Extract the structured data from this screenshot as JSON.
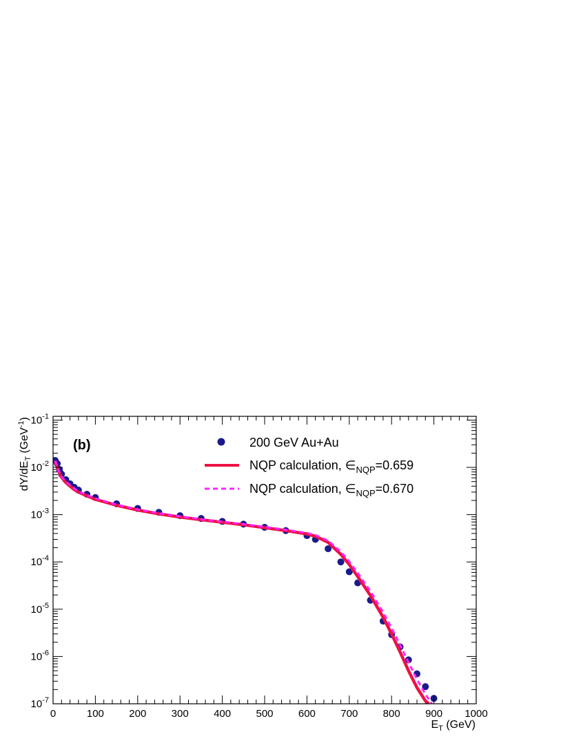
{
  "chart_data": {
    "type": "scatter",
    "panel_label": "(b)",
    "xlabel": {
      "main": "E",
      "sub": "T",
      "rest": " (GeV)"
    },
    "ylabel": {
      "pre": "dY/dE",
      "sub": "T",
      "mid": " (GeV",
      "sup": "-1",
      "post": ")"
    },
    "xlim": [
      0,
      1000
    ],
    "ylim": [
      1e-07,
      0.12
    ],
    "yscale": "log",
    "grid": false,
    "legend_position": "top-right",
    "x_ticks": [
      "0",
      "100",
      "200",
      "300",
      "400",
      "500",
      "600",
      "700",
      "800",
      "900",
      "1000"
    ],
    "y_ticks": [
      {
        "base": "10",
        "exp": "-7"
      },
      {
        "base": "10",
        "exp": "-6"
      },
      {
        "base": "10",
        "exp": "-5"
      },
      {
        "base": "10",
        "exp": "-4"
      },
      {
        "base": "10",
        "exp": "-3"
      },
      {
        "base": "10",
        "exp": "-2"
      },
      {
        "base": "10",
        "exp": "-1"
      }
    ],
    "series": [
      {
        "name": "200 GeV Au+Au",
        "style": "markers",
        "color": "#1a1a8c",
        "x": [
          5,
          10,
          15,
          20,
          30,
          40,
          50,
          60,
          80,
          100,
          150,
          200,
          250,
          300,
          350,
          400,
          450,
          500,
          550,
          600,
          620,
          650,
          680,
          700,
          720,
          750,
          780,
          800,
          820,
          840,
          860,
          880,
          900
        ],
        "y": [
          0.014,
          0.012,
          0.009,
          0.0072,
          0.0055,
          0.0045,
          0.0038,
          0.0033,
          0.0027,
          0.0023,
          0.0017,
          0.00135,
          0.00112,
          0.00095,
          0.00083,
          0.00072,
          0.00063,
          0.00054,
          0.00046,
          0.00036,
          0.0003,
          0.00019,
          0.0001,
          6.2e-05,
          3.6e-05,
          1.55e-05,
          5.6e-06,
          2.9e-06,
          1.6e-06,
          8.5e-07,
          4.3e-07,
          2.3e-07,
          1.3e-07
        ]
      },
      {
        "name": "NQP calculation, ",
        "eps_main": "∈",
        "eps_sub": "NQP",
        "eps_value": "=0.659",
        "style": "solid",
        "color": "#ee1144",
        "x": [
          5,
          10,
          15,
          20,
          30,
          40,
          50,
          60,
          80,
          100,
          150,
          200,
          250,
          300,
          350,
          400,
          450,
          500,
          550,
          600,
          620,
          650,
          680,
          700,
          720,
          750,
          780,
          800,
          820,
          840,
          860,
          880,
          888
        ],
        "y": [
          0.0135,
          0.0098,
          0.0076,
          0.0062,
          0.0048,
          0.004,
          0.0034,
          0.003,
          0.0025,
          0.0021,
          0.00158,
          0.00125,
          0.00104,
          0.00089,
          0.00078,
          0.00069,
          0.00061,
          0.00053,
          0.00046,
          0.00039,
          0.00035,
          0.00026,
          0.000145,
          8.8e-05,
          4.9e-05,
          1.95e-05,
          6.8e-06,
          3e-06,
          1.25e-06,
          5e-07,
          2.2e-07,
          1.15e-07,
          1e-07
        ]
      },
      {
        "name": "NQP calculation, ",
        "eps_main": "∈",
        "eps_sub": "NQP",
        "eps_value": "=0.670",
        "style": "dashed",
        "color": "#ff22ff",
        "x": [
          5,
          10,
          15,
          20,
          30,
          40,
          50,
          60,
          80,
          100,
          150,
          200,
          250,
          300,
          350,
          400,
          450,
          500,
          550,
          600,
          620,
          650,
          680,
          700,
          720,
          750,
          780,
          800,
          820,
          840,
          860,
          880,
          895
        ],
        "y": [
          0.0138,
          0.01,
          0.0078,
          0.0064,
          0.005,
          0.0042,
          0.0036,
          0.0031,
          0.0026,
          0.0022,
          0.00163,
          0.00129,
          0.00107,
          0.00092,
          0.0008,
          0.00071,
          0.00063,
          0.00055,
          0.00048,
          0.00041,
          0.00037,
          0.00028,
          0.000165,
          0.000102,
          5.8e-05,
          2.4e-05,
          8.6e-06,
          4e-06,
          1.75e-06,
          7.5e-07,
          3.3e-07,
          1.6e-07,
          1e-07
        ]
      }
    ]
  }
}
